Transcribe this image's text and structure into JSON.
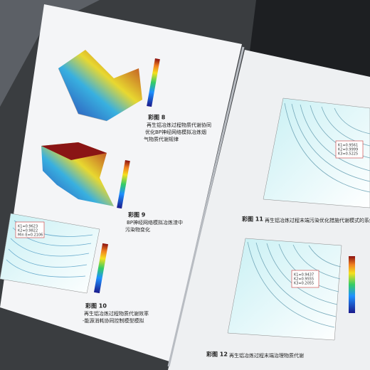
{
  "left_page": {
    "plates": [
      {
        "label": "彩图 8",
        "caption_lines": [
          "再生铝冶炼过程物质代谢协同",
          "优化BP神经网络模拟冶炼烟",
          "气物质代谢规律"
        ]
      },
      {
        "label": "彩图 9",
        "caption_lines": [
          "BP神经网络模拟冶炼渣中",
          "污染物变化"
        ]
      },
      {
        "label": "彩图 10",
        "caption_lines": [
          "再生铝冶炼过程物质代谢效率",
          "-能源消耗协同控制模型模拟"
        ],
        "annotation_lines": [
          "K1=0.9623",
          "K2=0.9822",
          "Min E=0.2106"
        ]
      }
    ]
  },
  "right_page": {
    "plates": [
      {
        "label": "彩图 11",
        "caption_lines": [
          "再生铝冶炼过程末端污染优化措施代谢模式的系统耦合"
        ],
        "annotation_lines": [
          "K1=0.9561",
          "K2=0.9999",
          "K3=0.5225"
        ]
      },
      {
        "label": "彩图 12",
        "caption_lines": [
          "再生铝冶炼过程末端治理物质代谢"
        ],
        "annotation_lines": [
          "K1=0.9437",
          "K2=0.9555",
          "K3=0.2055"
        ]
      }
    ]
  }
}
